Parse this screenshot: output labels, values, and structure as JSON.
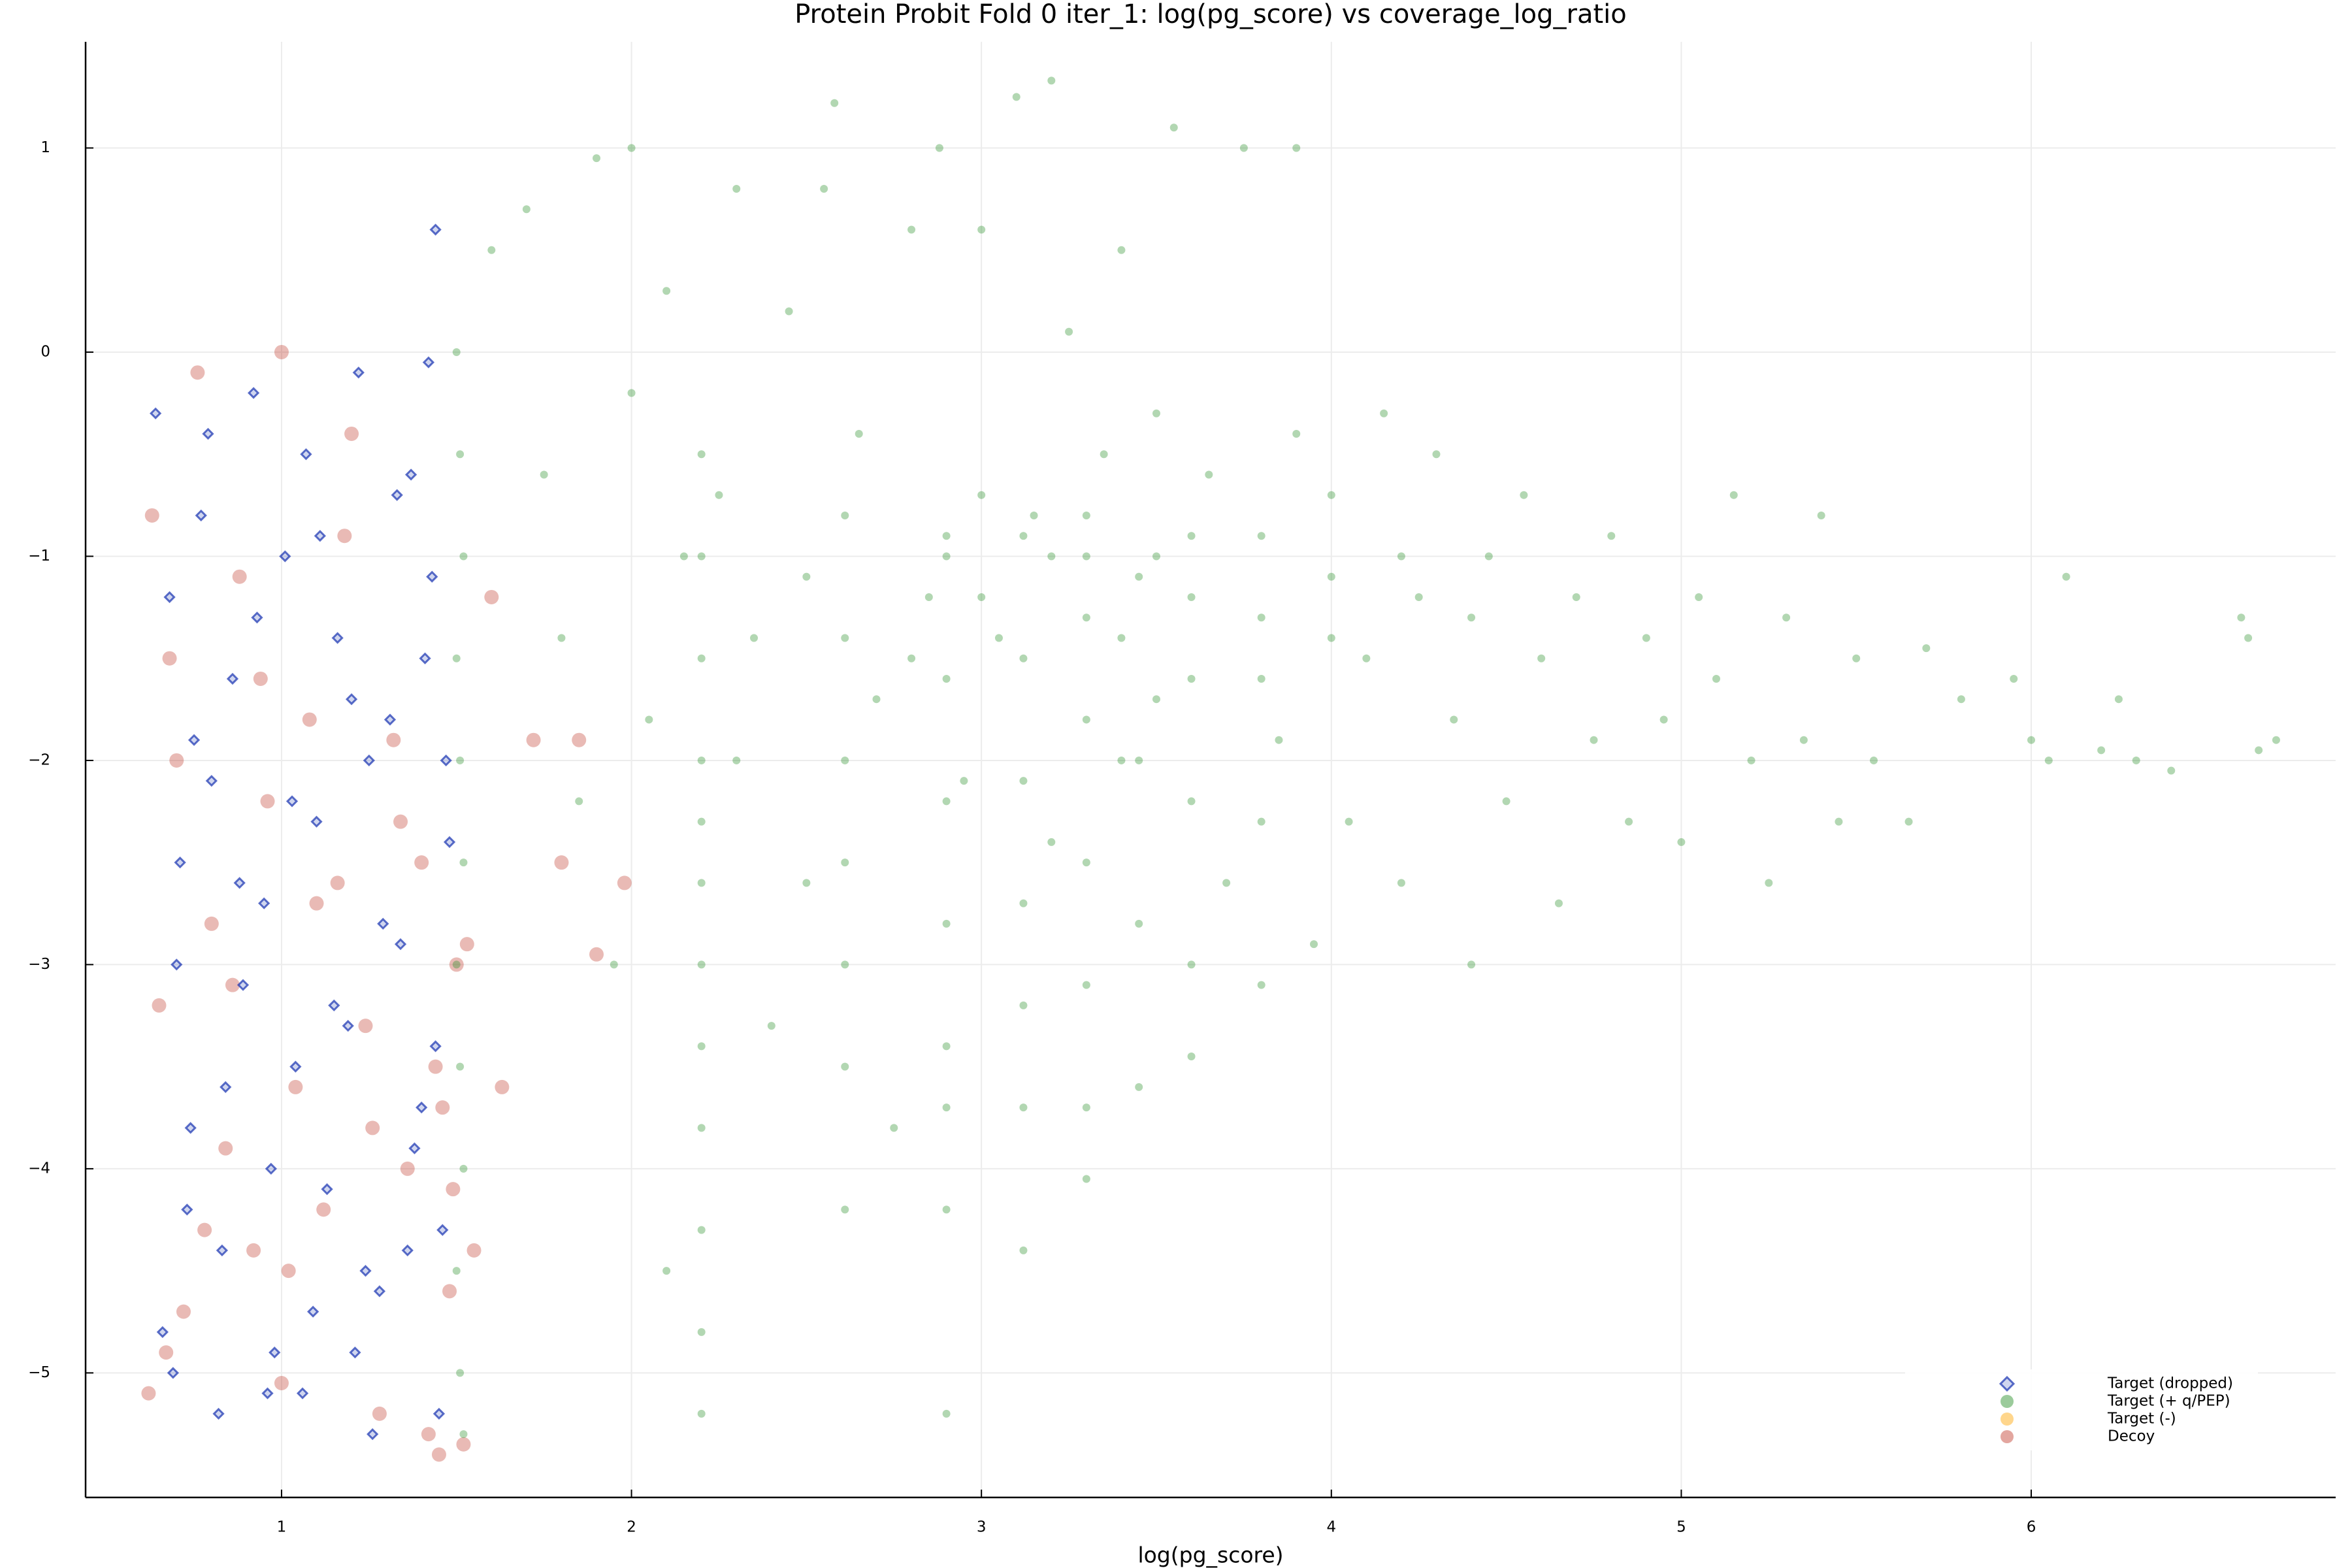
{
  "chart_data": {
    "type": "scatter",
    "title": "Protein Probit Fold 0 iter_1: log(pg_score) vs coverage_log_ratio",
    "xlabel": "log(pg_score)",
    "xlim": [
      0.44,
      6.87
    ],
    "ylim": [
      -5.61,
      1.52
    ],
    "xticks": [
      1,
      2,
      3,
      4,
      5,
      6
    ],
    "yticks": [
      1,
      0,
      {
        "value": -1,
        "label": "−1"
      },
      {
        "value": -2,
        "label": "−2"
      },
      {
        "value": -3,
        "label": "−3"
      },
      {
        "value": -4,
        "label": "−4"
      },
      {
        "value": -5,
        "label": "−5"
      }
    ],
    "grid": true,
    "legend": "bottom-right",
    "series": [
      {
        "name": "Target (dropped)",
        "color": "#1530b0",
        "marker": "diamond",
        "x": [
          0.64,
          0.68,
          0.71,
          0.74,
          0.77,
          0.8,
          0.83,
          0.86,
          0.89,
          0.92,
          0.95,
          0.98,
          1.01,
          1.04,
          1.07,
          1.1,
          1.13,
          1.16,
          1.19,
          1.22,
          1.25,
          1.28,
          1.31,
          1.34,
          1.37,
          1.4,
          1.43,
          1.46,
          1.48,
          1.44,
          0.66,
          0.7,
          0.75,
          0.79,
          0.84,
          0.88,
          0.93,
          0.97,
          1.03,
          1.06,
          1.11,
          1.15,
          1.2,
          1.24,
          1.29,
          1.33,
          1.38,
          1.41,
          1.45,
          1.47,
          0.69,
          0.82,
          0.96,
          1.09,
          1.21,
          1.36,
          1.42,
          1.44,
          0.73,
          1.26
        ],
        "values": [
          -0.3,
          -1.2,
          -2.5,
          -3.8,
          -0.8,
          -2.1,
          -4.4,
          -1.6,
          -3.1,
          -0.2,
          -2.7,
          -4.9,
          -1.0,
          -3.5,
          -0.5,
          -2.3,
          -4.1,
          -1.4,
          -3.3,
          -0.1,
          -2.0,
          -4.6,
          -1.8,
          -2.9,
          -0.6,
          -3.7,
          -1.1,
          -4.3,
          -2.4,
          0.6,
          -4.8,
          -3.0,
          -1.9,
          -0.4,
          -3.6,
          -2.6,
          -1.3,
          -4.0,
          -2.2,
          -5.1,
          -0.9,
          -3.2,
          -1.7,
          -4.5,
          -2.8,
          -0.7,
          -3.9,
          -1.5,
          -5.2,
          -2.0,
          -5.0,
          -5.2,
          -5.1,
          -4.7,
          -4.9,
          -4.4,
          -0.05,
          -3.4,
          -4.2,
          -5.3
        ]
      },
      {
        "name": "Target (+ q/PEP)",
        "color": "#228b22",
        "marker": "circle",
        "x": [
          1.5,
          1.51,
          1.52,
          1.5,
          1.51,
          1.52,
          1.5,
          1.51,
          1.52,
          1.5,
          1.51,
          1.52,
          2.2,
          2.2,
          2.2,
          2.2,
          2.2,
          2.2,
          2.2,
          2.2,
          2.2,
          2.2,
          2.2,
          2.2,
          2.61,
          2.61,
          2.61,
          2.61,
          2.61,
          2.61,
          2.61,
          2.9,
          2.9,
          2.9,
          2.9,
          2.9,
          2.9,
          2.9,
          2.9,
          3.12,
          3.12,
          3.12,
          3.12,
          3.12,
          3.12,
          3.12,
          3.3,
          3.3,
          3.3,
          3.3,
          3.3,
          3.3,
          3.45,
          3.45,
          3.45,
          3.45,
          3.6,
          3.6,
          3.6,
          3.6,
          3.8,
          3.8,
          3.8,
          1.6,
          1.7,
          1.75,
          1.8,
          1.85,
          1.9,
          1.95,
          2.0,
          2.0,
          2.05,
          2.1,
          2.1,
          2.15,
          2.25,
          2.3,
          2.3,
          2.35,
          2.4,
          2.45,
          2.5,
          2.5,
          2.55,
          2.58,
          2.65,
          2.7,
          2.75,
          2.8,
          2.85,
          2.88,
          2.95,
          3.0,
          3.0,
          3.05,
          3.1,
          3.15,
          3.2,
          3.2,
          3.25,
          3.3,
          3.35,
          3.4,
          3.4,
          3.5,
          3.5,
          3.55,
          3.6,
          3.65,
          3.7,
          3.75,
          3.8,
          3.85,
          3.9,
          3.9,
          3.95,
          4.0,
          4.0,
          4.05,
          4.1,
          4.15,
          4.2,
          4.25,
          4.3,
          4.35,
          4.4,
          4.45,
          4.5,
          4.55,
          4.6,
          4.65,
          4.7,
          4.75,
          4.8,
          4.85,
          4.9,
          4.95,
          5.0,
          5.05,
          5.1,
          5.15,
          5.2,
          5.25,
          5.3,
          5.35,
          5.4,
          5.45,
          5.5,
          5.55,
          5.65,
          5.7,
          5.8,
          5.95,
          6.0,
          6.05,
          6.1,
          6.2,
          6.25,
          6.3,
          6.4,
          6.6,
          6.62,
          6.65,
          6.7,
          2.8,
          3.0,
          3.2,
          3.4,
          3.6,
          3.8,
          4.0,
          3.5,
          3.3,
          2.9,
          4.2,
          4.4
        ],
        "values": [
          0,
          -0.5,
          -1,
          -1.5,
          -2,
          -2.5,
          -3,
          -3.5,
          -4,
          -4.5,
          -5,
          -5.3,
          -0.5,
          -1,
          -1.5,
          -2,
          -2.3,
          -2.6,
          -3,
          -3.4,
          -3.8,
          -4.3,
          -4.8,
          -5.2,
          -0.8,
          -1.4,
          -2,
          -2.5,
          -3,
          -3.5,
          -4.2,
          -1,
          -1.6,
          -2.2,
          -2.8,
          -3.4,
          -3.7,
          -4.2,
          -5.2,
          -0.9,
          -1.5,
          -2.1,
          -2.7,
          -3.2,
          -3.7,
          -4.4,
          -1,
          -1.8,
          -2.5,
          -3.1,
          -3.7,
          -4.05,
          -1.1,
          -2,
          -2.8,
          -3.6,
          -1.2,
          -2.2,
          -3,
          -3.45,
          -1.3,
          -2.3,
          -3.1,
          0.5,
          0.7,
          -0.6,
          -1.4,
          -2.2,
          0.95,
          -3.0,
          1.0,
          -0.2,
          -1.8,
          -4.5,
          0.3,
          -1.0,
          -0.7,
          0.8,
          -2.0,
          -1.4,
          -3.3,
          0.2,
          -1.1,
          -2.6,
          0.8,
          1.22,
          -0.4,
          -1.7,
          -3.8,
          0.6,
          -1.2,
          1.0,
          -2.1,
          -0.7,
          0.6,
          -1.4,
          1.25,
          -0.8,
          -2.4,
          1.33,
          0.1,
          -1.3,
          -0.5,
          -2.0,
          0.5,
          -1.0,
          -0.3,
          1.1,
          -1.6,
          -0.6,
          -2.6,
          1.0,
          -0.9,
          -1.9,
          1.0,
          -0.4,
          -2.9,
          -1.1,
          -0.7,
          -2.3,
          -1.5,
          -0.3,
          -2.6,
          -1.2,
          -0.5,
          -1.8,
          -3.0,
          -1.0,
          -2.2,
          -0.7,
          -1.5,
          -2.7,
          -1.2,
          -1.9,
          -0.9,
          -2.3,
          -1.4,
          -1.8,
          -2.4,
          -1.2,
          -1.6,
          -0.7,
          -2.0,
          -2.6,
          -1.3,
          -1.9,
          -0.8,
          -2.3,
          -1.5,
          -2.0,
          -2.3,
          -1.45,
          -1.7,
          -1.6,
          -1.9,
          -2.0,
          -1.1,
          -1.95,
          -1.7,
          -2.0,
          -2.05,
          -1.3,
          -1.4,
          -1.95,
          -1.9,
          -1.5,
          -1.2,
          -1.0,
          -1.4,
          -0.9,
          -1.6,
          -1.4,
          -1.7,
          -0.8,
          -0.9,
          -1.0,
          -1.3
        ]
      },
      {
        "name": "Target (-)",
        "color": "#ffa500",
        "marker": "circle",
        "x": [],
        "values": []
      },
      {
        "name": "Decoy",
        "color": "#c0392b",
        "marker": "circle",
        "x": [
          0.62,
          0.65,
          0.68,
          0.72,
          0.76,
          0.8,
          0.84,
          0.88,
          0.92,
          0.96,
          1.0,
          1.04,
          1.08,
          1.12,
          1.16,
          1.2,
          1.24,
          1.28,
          1.32,
          1.36,
          1.4,
          1.44,
          1.48,
          1.5,
          1.52,
          0.63,
          0.7,
          0.78,
          0.86,
          0.94,
          1.02,
          1.1,
          1.18,
          1.26,
          1.34,
          1.42,
          1.46,
          1.49,
          1.53,
          1.6,
          1.63,
          1.72,
          1.8,
          1.85,
          1.9,
          1.98,
          1.55,
          1.45,
          0.67,
          1.0
        ],
        "values": [
          -5.1,
          -3.2,
          -1.5,
          -4.7,
          -0.1,
          -2.8,
          -3.9,
          -1.1,
          -4.4,
          -2.2,
          0,
          -3.6,
          -1.8,
          -4.2,
          -2.6,
          -0.4,
          -3.3,
          -5.2,
          -1.9,
          -4.0,
          -2.5,
          -3.5,
          -4.6,
          -3.0,
          -5.35,
          -0.8,
          -2.0,
          -4.3,
          -3.1,
          -1.6,
          -4.5,
          -2.7,
          -0.9,
          -3.8,
          -2.3,
          -5.3,
          -3.7,
          -4.1,
          -2.9,
          -1.2,
          -3.6,
          -1.9,
          -2.5,
          -1.9,
          -2.95,
          -2.6,
          -4.4,
          -5.4,
          -4.9,
          -5.05
        ]
      }
    ]
  }
}
